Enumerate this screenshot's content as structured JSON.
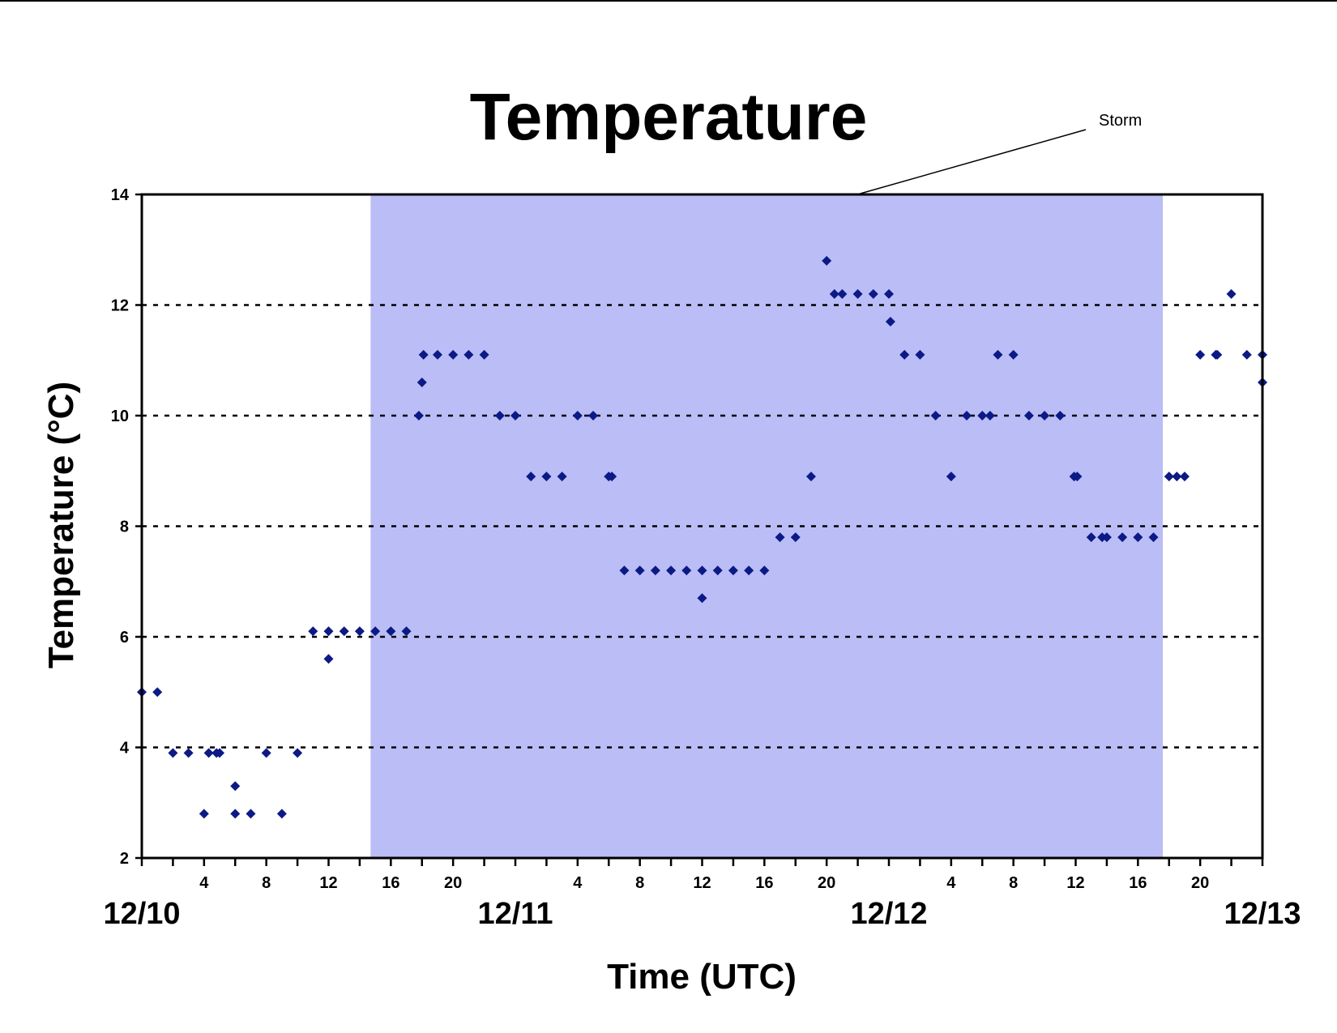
{
  "chart_data": {
    "type": "scatter",
    "title": "Temperature",
    "xlabel": "Time (UTC)",
    "ylabel": "Temperature (°C)",
    "x_unit": "hours from 12/10 00 UTC",
    "xlim": [
      0,
      72
    ],
    "ylim": [
      2,
      14
    ],
    "yticks": [
      2,
      4,
      6,
      8,
      10,
      12,
      14
    ],
    "grid": {
      "y": true,
      "style": "dotted"
    },
    "x_hour_ticks": [
      {
        "x": 4,
        "label": "4"
      },
      {
        "x": 8,
        "label": "8"
      },
      {
        "x": 12,
        "label": "12"
      },
      {
        "x": 16,
        "label": "16"
      },
      {
        "x": 20,
        "label": "20"
      },
      {
        "x": 28,
        "label": "4"
      },
      {
        "x": 32,
        "label": "8"
      },
      {
        "x": 36,
        "label": "12"
      },
      {
        "x": 40,
        "label": "16"
      },
      {
        "x": 44,
        "label": "20"
      },
      {
        "x": 52,
        "label": "4"
      },
      {
        "x": 56,
        "label": "8"
      },
      {
        "x": 60,
        "label": "12"
      },
      {
        "x": 64,
        "label": "16"
      },
      {
        "x": 68,
        "label": "20"
      }
    ],
    "date_labels": [
      {
        "x": 0,
        "label": "12/10"
      },
      {
        "x": 24,
        "label": "12/11"
      },
      {
        "x": 48,
        "label": "12/12"
      },
      {
        "x": 72,
        "label": "12/13"
      }
    ],
    "storm_band": {
      "label": "Storm",
      "x_start": 14.7,
      "x_end": 65.6,
      "color": "#bbbdf7"
    },
    "point_color": "#0c1a86",
    "series": [
      {
        "x": [
          0,
          1,
          2,
          3,
          4,
          4.3,
          4.8,
          5,
          6,
          6,
          7,
          8,
          9,
          10,
          11,
          12,
          12,
          13,
          14,
          15,
          16,
          17,
          17.8,
          18,
          18.1,
          19,
          20,
          21,
          22,
          23,
          24,
          25,
          26,
          27,
          28,
          29,
          30,
          30.2,
          31,
          32,
          33,
          34,
          35,
          36,
          36,
          37,
          38,
          39,
          40,
          41,
          42,
          43,
          44,
          44.5,
          45,
          46,
          47,
          48,
          48.1,
          49,
          50,
          51,
          52,
          53,
          54,
          54.5,
          55,
          56,
          57,
          58,
          59,
          59.9,
          60.1,
          61,
          61.7,
          62,
          63,
          64,
          65,
          66,
          66.5,
          67,
          68,
          69,
          69.1,
          70,
          71,
          72,
          72
        ],
        "y": [
          5.0,
          5.0,
          3.9,
          3.9,
          2.8,
          3.9,
          3.9,
          3.9,
          3.3,
          2.8,
          2.8,
          3.9,
          2.8,
          3.9,
          6.1,
          5.6,
          6.1,
          6.1,
          6.1,
          6.1,
          6.1,
          6.1,
          10.0,
          10.6,
          11.1,
          11.1,
          11.1,
          11.1,
          11.1,
          10.0,
          10.0,
          8.9,
          8.9,
          8.9,
          10.0,
          10.0,
          8.9,
          8.9,
          7.2,
          7.2,
          7.2,
          7.2,
          7.2,
          7.2,
          6.7,
          7.2,
          7.2,
          7.2,
          7.2,
          7.8,
          7.8,
          8.9,
          12.8,
          12.2,
          12.2,
          12.2,
          12.2,
          12.2,
          11.7,
          11.1,
          11.1,
          10.0,
          8.9,
          10.0,
          10.0,
          10.0,
          11.1,
          11.1,
          10.0,
          10.0,
          10.0,
          8.9,
          8.9,
          7.8,
          7.8,
          7.8,
          7.8,
          7.8,
          7.8,
          8.9,
          8.9,
          8.9,
          11.1,
          11.1,
          11.1,
          12.2,
          11.1,
          11.1,
          10.6
        ]
      }
    ]
  }
}
